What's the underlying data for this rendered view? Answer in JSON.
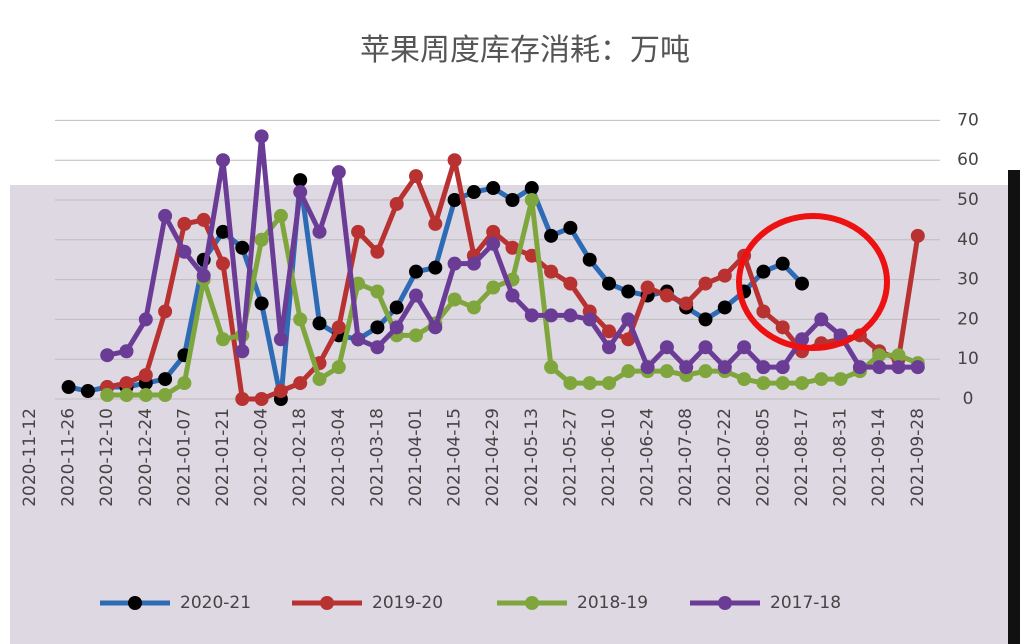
{
  "chart_data": {
    "type": "line",
    "title": "苹果周度库存消耗：万吨",
    "categories": [
      "2020-11-12",
      null,
      "2020-11-26",
      null,
      "2020-12-10",
      null,
      "2020-12-24",
      null,
      "2021-01-07",
      null,
      "2021-01-21",
      null,
      "2021-02-04",
      null,
      "2021-02-18",
      null,
      "2021-03-04",
      null,
      "2021-03-18",
      null,
      "2021-04-01",
      null,
      "2021-04-15",
      null,
      "2021-04-29",
      null,
      "2021-05-13",
      null,
      "2021-05-27",
      null,
      "2021-06-10",
      null,
      "2021-06-24",
      null,
      "2021-07-08",
      null,
      "2021-07-22",
      null,
      "2021-08-05",
      null,
      "2021-08-17",
      null,
      "2021-08-31",
      null,
      "2021-09-14",
      null,
      "2021-09-28"
    ],
    "ylim": [
      0,
      70
    ],
    "yticks": [
      0,
      10,
      20,
      30,
      40,
      50,
      60,
      70
    ],
    "grid": true,
    "legend": "bottom",
    "series": [
      {
        "name": "2020-21",
        "color": "#2e6bb5",
        "marker_color": "#000000",
        "values": [
          null,
          null,
          3,
          2,
          3,
          3,
          4,
          5,
          11,
          35,
          42,
          38,
          24,
          0,
          55,
          19,
          16,
          15,
          18,
          23,
          32,
          33,
          50,
          52,
          53,
          50,
          53,
          41,
          43,
          35,
          29,
          27,
          26,
          27,
          23,
          20,
          23,
          27,
          32,
          34,
          29,
          null,
          null,
          null,
          null,
          null,
          null
        ]
      },
      {
        "name": "2019-20",
        "color": "#b83232",
        "marker_color": "#b83232",
        "values": [
          null,
          null,
          null,
          null,
          3,
          4,
          6,
          22,
          44,
          45,
          34,
          0,
          0,
          2,
          4,
          9,
          18,
          42,
          37,
          49,
          56,
          44,
          60,
          36,
          42,
          38,
          36,
          32,
          29,
          22,
          17,
          15,
          28,
          26,
          24,
          29,
          31,
          36,
          22,
          18,
          12,
          14,
          15,
          16,
          12,
          10,
          41
        ]
      },
      {
        "name": "2018-19",
        "color": "#7ea63c",
        "marker_color": "#7ea63c",
        "values": [
          null,
          null,
          null,
          null,
          1,
          1,
          1,
          1,
          4,
          30,
          15,
          16,
          40,
          46,
          20,
          5,
          8,
          29,
          27,
          16,
          16,
          19,
          25,
          23,
          28,
          30,
          50,
          8,
          4,
          4,
          4,
          7,
          7,
          7,
          6,
          7,
          7,
          5,
          4,
          4,
          4,
          5,
          5,
          7,
          11,
          11,
          9
        ]
      },
      {
        "name": "2017-18",
        "color": "#6a3c96",
        "marker_color": "#6a3c96",
        "values": [
          null,
          null,
          null,
          null,
          11,
          12,
          20,
          46,
          37,
          31,
          60,
          12,
          66,
          15,
          52,
          42,
          57,
          15,
          13,
          18,
          26,
          18,
          34,
          34,
          39,
          26,
          21,
          21,
          21,
          20,
          13,
          20,
          8,
          13,
          8,
          13,
          8,
          13,
          8,
          8,
          15,
          20,
          16,
          8,
          8,
          8,
          8
        ]
      }
    ]
  }
}
